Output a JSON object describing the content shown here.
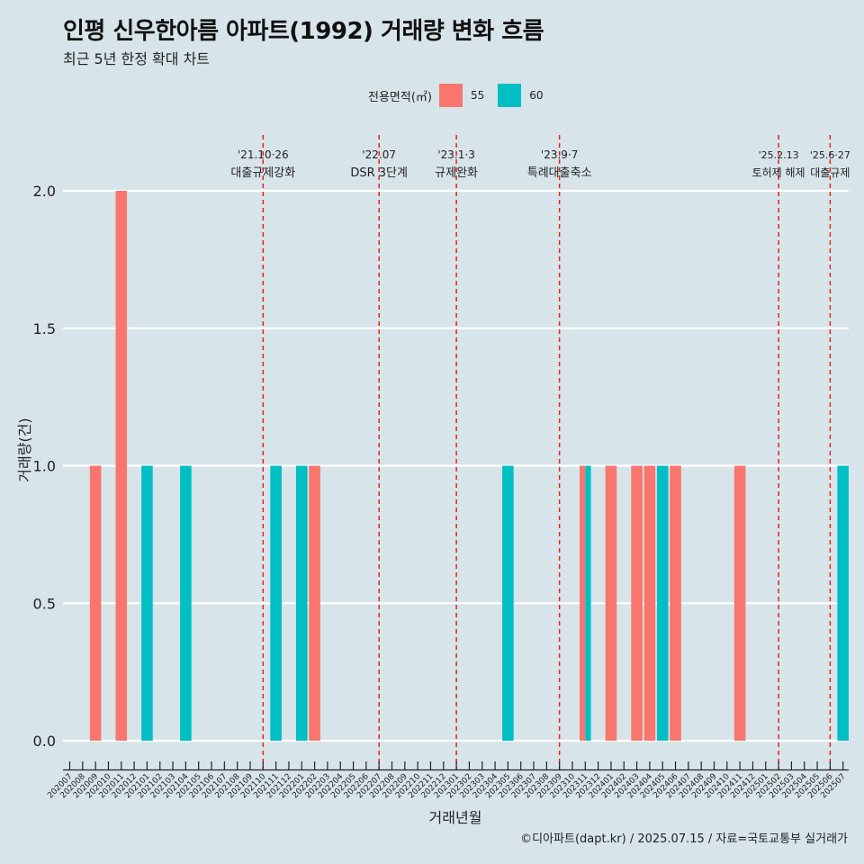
{
  "title": "인평 신우한아름 아파트(1992) 거래량 변화 흐름",
  "subtitle": "최근 5년 한정 확대 차트",
  "caption": "©디아파트(dapt.kr) / 2025.07.15 / 자료=국토교통부 실거래가",
  "legend": {
    "title": "전용면적(㎡)",
    "items": [
      {
        "label": "55",
        "color": "#f8766d"
      },
      {
        "label": "60",
        "color": "#00bfc4"
      }
    ]
  },
  "chart_data": {
    "type": "bar",
    "xlabel": "거래년월",
    "ylabel": "거래량(건)",
    "ylim": [
      0,
      2
    ],
    "yticks": [
      0.0,
      0.5,
      1.0,
      1.5,
      2.0
    ],
    "ytick_labels": [
      "0.0",
      "0.5",
      "1.0",
      "1.5",
      "2.0"
    ],
    "categories": [
      "202007",
      "202008",
      "202009",
      "202010",
      "202011",
      "202012",
      "202101",
      "202102",
      "202103",
      "202104",
      "202105",
      "202106",
      "202107",
      "202108",
      "202109",
      "202110",
      "202111",
      "202112",
      "202201",
      "202202",
      "202203",
      "202204",
      "202205",
      "202206",
      "202207",
      "202208",
      "202209",
      "202210",
      "202211",
      "202212",
      "202301",
      "202302",
      "202303",
      "202304",
      "202305",
      "202306",
      "202307",
      "202308",
      "202309",
      "202310",
      "202311",
      "202312",
      "202401",
      "202402",
      "202403",
      "202404",
      "202405",
      "202406",
      "202407",
      "202408",
      "202409",
      "202410",
      "202411",
      "202412",
      "202501",
      "202502",
      "202503",
      "202504",
      "202505",
      "202506",
      "202507"
    ],
    "series": [
      {
        "name": "55",
        "color": "#f8766d",
        "points": [
          {
            "x": "202009",
            "y": 1
          },
          {
            "x": "202011",
            "y": 2
          },
          {
            "x": "202202",
            "y": 1
          },
          {
            "x": "202311",
            "y": 1
          },
          {
            "x": "202401",
            "y": 1
          },
          {
            "x": "202403",
            "y": 1
          },
          {
            "x": "202404",
            "y": 1
          },
          {
            "x": "202406",
            "y": 1
          },
          {
            "x": "202411",
            "y": 1
          }
        ]
      },
      {
        "name": "60",
        "color": "#00bfc4",
        "points": [
          {
            "x": "202101",
            "y": 1
          },
          {
            "x": "202104",
            "y": 1
          },
          {
            "x": "202111",
            "y": 1
          },
          {
            "x": "202201",
            "y": 1
          },
          {
            "x": "202305",
            "y": 1
          },
          {
            "x": "202311",
            "y": 1
          },
          {
            "x": "202405",
            "y": 1
          },
          {
            "x": "202507",
            "y": 1
          }
        ]
      }
    ],
    "events": [
      {
        "date": "'21.10·26",
        "label": "대출규제강화",
        "x": "202110"
      },
      {
        "date": "'22.07",
        "label": "DSR 3단계",
        "x": "202207"
      },
      {
        "date": "'23.1·3",
        "label": "규제완화",
        "x": "202301"
      },
      {
        "date": "'23.9·7",
        "label": "특례대출축소",
        "x": "202309"
      },
      {
        "date": "'25.2.13",
        "label": "토허제 해제",
        "x": "202502"
      },
      {
        "date": "'25.6·27",
        "label": "대출규제",
        "x": "202506"
      }
    ],
    "grid": true,
    "legend_position": "top"
  }
}
